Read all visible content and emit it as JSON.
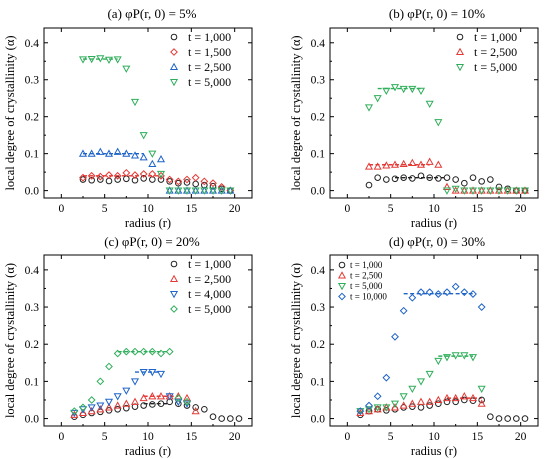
{
  "chart_data": [
    {
      "type": "scatter",
      "title": "(a) φP(r, 0) = 5%",
      "xlabel": "radius (r)",
      "ylabel": "local degree of crystallinity (α)",
      "xlim": [
        -2,
        22
      ],
      "ylim": [
        -0.02,
        0.44
      ],
      "xticks": [
        "0",
        "5",
        "10",
        "15",
        "20"
      ],
      "yticks": [
        "0.0",
        "0.1",
        "0.2",
        "0.3",
        "0.4"
      ],
      "legend_position": "top-right",
      "legend_size": "normal",
      "grid": false,
      "series": [
        {
          "name": "t = 1,000",
          "marker": "circle",
          "color": "#222222",
          "x": [
            2.5,
            3.5,
            4.5,
            5.5,
            6.5,
            7.5,
            8.5,
            9.5,
            10.5,
            11.5,
            12.5,
            13.5,
            14.5,
            15.5,
            16.5,
            17.5,
            18.5,
            19.5
          ],
          "y": [
            0.03,
            0.028,
            0.03,
            0.026,
            0.03,
            0.032,
            0.028,
            0.033,
            0.03,
            0.03,
            0.025,
            0.02,
            0.022,
            0.018,
            0.015,
            0.012,
            0.005,
            0.0
          ]
        },
        {
          "name": "t = 1,500",
          "marker": "diamond",
          "color": "#e53935",
          "x": [
            2.5,
            3.5,
            4.5,
            5.5,
            6.5,
            7.5,
            8.5,
            9.5,
            10.5,
            11.5,
            12.5,
            13.5,
            14.5,
            15.5,
            16.5,
            17.5,
            18.5,
            19.5
          ],
          "y": [
            0.035,
            0.04,
            0.038,
            0.042,
            0.04,
            0.048,
            0.042,
            0.045,
            0.045,
            0.04,
            0.03,
            0.025,
            0.03,
            0.035,
            0.025,
            0.02,
            0.01,
            0.0
          ]
        },
        {
          "name": "t = 2,500",
          "marker": "triangle-up",
          "color": "#1e63c8",
          "x": [
            2.5,
            3.5,
            4.5,
            5.5,
            6.5,
            7.5,
            8.5,
            9.5,
            10.5,
            11.5,
            12.5,
            13.5,
            14.5,
            15.5,
            16.5,
            17.5,
            18.5,
            19.5
          ],
          "y": [
            0.1,
            0.1,
            0.105,
            0.1,
            0.105,
            0.1,
            0.095,
            0.09,
            0.072,
            0.085,
            0.0,
            0.0,
            0.0,
            0.0,
            0.0,
            0.0,
            0.0,
            0.0
          ]
        },
        {
          "name": "t = 5,000",
          "marker": "triangle-down",
          "color": "#2eae5a",
          "x": [
            2.5,
            3.5,
            4.5,
            5.5,
            6.5,
            7.5,
            8.5,
            9.5,
            10.5,
            11.5,
            12.5,
            13.5,
            14.5,
            15.5,
            16.5,
            17.5,
            18.5,
            19.5
          ],
          "y": [
            0.355,
            0.356,
            0.358,
            0.354,
            0.355,
            0.33,
            0.24,
            0.15,
            0.1,
            0.045,
            0.0,
            0.0,
            0.0,
            0.0,
            0.0,
            0.0,
            0.0,
            0.0
          ]
        }
      ],
      "fit_lines": [
        {
          "color": "#e53935",
          "x": [
            2.5,
            11.5
          ],
          "y": 0.04
        },
        {
          "color": "#1e63c8",
          "x": [
            2.5,
            9.5
          ],
          "y": 0.1
        },
        {
          "color": "#2eae5a",
          "x": [
            2.5,
            6.5
          ],
          "y": 0.356
        }
      ]
    },
    {
      "type": "scatter",
      "title": "(b) φP(r, 0) = 10%",
      "xlabel": "radius (r)",
      "ylabel": "local degree of crystallinity (α)",
      "xlim": [
        -2,
        22
      ],
      "ylim": [
        -0.02,
        0.44
      ],
      "xticks": [
        "0",
        "5",
        "10",
        "15",
        "20"
      ],
      "yticks": [
        "0.0",
        "0.1",
        "0.2",
        "0.3",
        "0.4"
      ],
      "legend_position": "top-right",
      "legend_size": "normal",
      "grid": false,
      "series": [
        {
          "name": "t = 1,000",
          "marker": "circle",
          "color": "#222222",
          "x": [
            2.5,
            3.5,
            4.5,
            5.5,
            6.5,
            7.5,
            8.5,
            9.5,
            10.5,
            11.5,
            12.5,
            13.5,
            14.5,
            15.5,
            16.5,
            17.5,
            18.5,
            19.5,
            20.5
          ],
          "y": [
            0.015,
            0.035,
            0.03,
            0.032,
            0.035,
            0.033,
            0.04,
            0.035,
            0.033,
            0.035,
            0.03,
            0.02,
            0.035,
            0.025,
            0.03,
            0.01,
            0.005,
            0.0,
            0.0
          ]
        },
        {
          "name": "t = 2,500",
          "marker": "triangle-up",
          "color": "#e53935",
          "x": [
            2.5,
            3.5,
            4.5,
            5.5,
            6.5,
            7.5,
            8.5,
            9.5,
            10.5,
            11.5,
            12.5,
            13.5,
            14.5,
            15.5,
            16.5,
            17.5,
            18.5,
            19.5,
            20.5
          ],
          "y": [
            0.065,
            0.065,
            0.068,
            0.07,
            0.072,
            0.075,
            0.07,
            0.078,
            0.07,
            0.01,
            0.0,
            0.0,
            0.0,
            0.0,
            0.0,
            0.0,
            0.0,
            0.0,
            0.0
          ]
        },
        {
          "name": "t = 5,000",
          "marker": "triangle-down",
          "color": "#2eae5a",
          "x": [
            2.5,
            3.5,
            4.5,
            5.5,
            6.5,
            7.5,
            8.5,
            9.5,
            10.5,
            11.5,
            12.5,
            13.5,
            14.5,
            15.5,
            16.5,
            17.5,
            18.5,
            19.5,
            20.5
          ],
          "y": [
            0.225,
            0.25,
            0.27,
            0.28,
            0.275,
            0.275,
            0.27,
            0.235,
            0.185,
            0.0,
            0.005,
            0.0,
            0.0,
            0.0,
            0.0,
            0.0,
            0.0,
            0.0,
            0.0
          ]
        }
      ],
      "fit_lines": [
        {
          "color": "#222222",
          "x": [
            5.5,
            11.5
          ],
          "y": 0.035
        },
        {
          "color": "#e53935",
          "x": [
            2.5,
            9.5
          ],
          "y": 0.07
        },
        {
          "color": "#2eae5a",
          "x": [
            3.5,
            8.5
          ],
          "y": 0.276
        }
      ]
    },
    {
      "type": "scatter",
      "title": "(c) φP(r, 0) = 20%",
      "xlabel": "radius (r)",
      "ylabel": "local degree of crystallinity (α)",
      "xlim": [
        -2,
        22
      ],
      "ylim": [
        -0.02,
        0.44
      ],
      "xticks": [
        "0",
        "5",
        "10",
        "15",
        "20"
      ],
      "yticks": [
        "0.0",
        "0.1",
        "0.2",
        "0.3",
        "0.4"
      ],
      "legend_position": "top-right",
      "legend_size": "normal",
      "grid": false,
      "series": [
        {
          "name": "t = 1,000",
          "marker": "circle",
          "color": "#222222",
          "x": [
            1.5,
            2.5,
            3.5,
            4.5,
            5.5,
            6.5,
            7.5,
            8.5,
            9.5,
            10.5,
            11.5,
            12.5,
            13.5,
            14.5,
            15.5,
            16.5,
            17.5,
            18.5,
            19.5,
            20.5
          ],
          "y": [
            0.005,
            0.01,
            0.015,
            0.018,
            0.022,
            0.025,
            0.028,
            0.032,
            0.035,
            0.038,
            0.04,
            0.045,
            0.04,
            0.035,
            0.03,
            0.025,
            0.005,
            0.0,
            0.0,
            0.0
          ]
        },
        {
          "name": "t = 2,500",
          "marker": "triangle-up",
          "color": "#e53935",
          "x": [
            1.5,
            2.5,
            3.5,
            4.5,
            5.5,
            6.5,
            7.5,
            8.5,
            9.5,
            10.5,
            11.5,
            12.5,
            13.5,
            14.5,
            15.5
          ],
          "y": [
            0.01,
            0.015,
            0.02,
            0.025,
            0.03,
            0.035,
            0.04,
            0.045,
            0.055,
            0.06,
            0.06,
            0.06,
            0.06,
            0.055,
            0.02
          ]
        },
        {
          "name": "t = 4,000",
          "marker": "triangle-down",
          "color": "#1e63c8",
          "x": [
            1.5,
            2.5,
            3.5,
            4.5,
            5.5,
            6.5,
            7.5,
            8.5,
            9.5,
            10.5,
            11.5,
            12.5,
            13.5,
            14.5
          ],
          "y": [
            0.015,
            0.025,
            0.03,
            0.035,
            0.045,
            0.06,
            0.075,
            0.1,
            0.125,
            0.125,
            0.12,
            0.06,
            0.045,
            0.04
          ]
        },
        {
          "name": "t = 5,000",
          "marker": "diamond",
          "color": "#2eae5a",
          "x": [
            1.5,
            2.5,
            3.5,
            4.5,
            5.5,
            6.5,
            7.5,
            8.5,
            9.5,
            10.5,
            11.5,
            12.5,
            13.5,
            14.5
          ],
          "y": [
            0.02,
            0.03,
            0.05,
            0.1,
            0.14,
            0.175,
            0.18,
            0.18,
            0.18,
            0.18,
            0.175,
            0.18,
            0.055,
            0.045
          ]
        }
      ],
      "fit_lines": [
        {
          "color": "#222222",
          "x": [
            9.5,
            12.5
          ],
          "y": 0.04
        },
        {
          "color": "#e53935",
          "x": [
            9.5,
            13.5
          ],
          "y": 0.06
        },
        {
          "color": "#1e63c8",
          "x": [
            8.5,
            11.5
          ],
          "y": 0.125
        },
        {
          "color": "#2eae5a",
          "x": [
            6.5,
            12.5
          ],
          "y": 0.18
        }
      ]
    },
    {
      "type": "scatter",
      "title": "(d) φP(r, 0) = 30%",
      "xlabel": "radius (r)",
      "ylabel": "local degree of crystallinity (α)",
      "xlim": [
        -2,
        22
      ],
      "ylim": [
        -0.02,
        0.44
      ],
      "xticks": [
        "0",
        "5",
        "10",
        "15",
        "20"
      ],
      "yticks": [
        "0.0",
        "0.1",
        "0.2",
        "0.3",
        "0.4"
      ],
      "legend_position": "top-left",
      "legend_size": "small",
      "grid": false,
      "series": [
        {
          "name": "t = 1,000",
          "marker": "circle",
          "color": "#222222",
          "x": [
            1.5,
            2.5,
            3.5,
            4.5,
            5.5,
            6.5,
            7.5,
            8.5,
            9.5,
            10.5,
            11.5,
            12.5,
            13.5,
            14.5,
            15.5,
            16.5,
            17.5,
            18.5,
            19.5,
            20.5
          ],
          "y": [
            0.01,
            0.02,
            0.025,
            0.022,
            0.025,
            0.03,
            0.032,
            0.03,
            0.035,
            0.04,
            0.045,
            0.045,
            0.05,
            0.048,
            0.05,
            0.005,
            0.0,
            0.0,
            0.0,
            0.0
          ]
        },
        {
          "name": "t = 2,500",
          "marker": "triangle-up",
          "color": "#e53935",
          "x": [
            1.5,
            2.5,
            3.5,
            4.5,
            5.5,
            6.5,
            7.5,
            8.5,
            9.5,
            10.5,
            11.5,
            12.5,
            13.5,
            14.5,
            15.5
          ],
          "y": [
            0.015,
            0.02,
            0.025,
            0.03,
            0.03,
            0.035,
            0.04,
            0.045,
            0.045,
            0.05,
            0.055,
            0.055,
            0.06,
            0.055,
            0.04
          ]
        },
        {
          "name": "t = 5,000",
          "marker": "triangle-down",
          "color": "#2eae5a",
          "x": [
            1.5,
            2.5,
            3.5,
            4.5,
            5.5,
            6.5,
            7.5,
            8.5,
            9.5,
            10.5,
            11.5,
            12.5,
            13.5,
            14.5,
            15.5
          ],
          "y": [
            0.02,
            0.025,
            0.03,
            0.03,
            0.04,
            0.06,
            0.08,
            0.1,
            0.12,
            0.155,
            0.165,
            0.17,
            0.17,
            0.165,
            0.08
          ]
        },
        {
          "name": "t = 10,000",
          "marker": "diamond",
          "color": "#1e63c8",
          "x": [
            1.5,
            2.5,
            3.5,
            4.5,
            5.5,
            6.5,
            7.5,
            8.5,
            9.5,
            10.5,
            11.5,
            12.5,
            13.5,
            14.5,
            15.5
          ],
          "y": [
            0.02,
            0.035,
            0.06,
            0.11,
            0.22,
            0.29,
            0.325,
            0.34,
            0.34,
            0.335,
            0.34,
            0.355,
            0.34,
            0.335,
            0.3
          ]
        }
      ],
      "fit_lines": [
        {
          "color": "#e53935",
          "x": [
            11.5,
            15.5
          ],
          "y": 0.055
        },
        {
          "color": "#2eae5a",
          "x": [
            10.5,
            14.5
          ],
          "y": 0.168
        },
        {
          "color": "#1e63c8",
          "x": [
            6.5,
            14.5
          ],
          "y": 0.336
        }
      ]
    }
  ]
}
